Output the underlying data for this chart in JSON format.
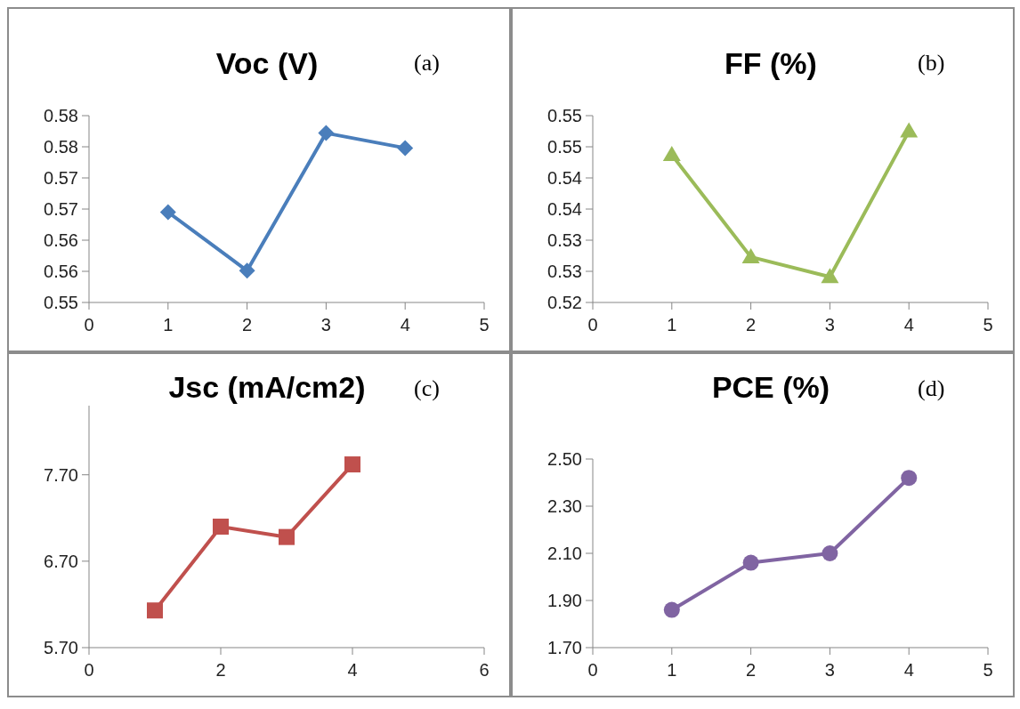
{
  "chart_data": [
    {
      "type": "line",
      "title": "Voc (V)",
      "annotations": [
        "(a)"
      ],
      "x": [
        1,
        2,
        3,
        4
      ],
      "marker": "diamond",
      "grid": false,
      "series": [
        {
          "color": "#4a7ebb",
          "values": [
            0.5645,
            0.5551,
            0.5772,
            0.5748
          ]
        }
      ],
      "xlim": [
        0,
        5
      ],
      "xticks": [
        0,
        1,
        2,
        3,
        4,
        5
      ],
      "ylim": [
        0.55,
        0.58
      ],
      "yticks": [
        0.55,
        {
          "value": 0.555,
          "label": "0.56"
        },
        0.56,
        {
          "value": 0.565,
          "label": "0.57"
        },
        0.57,
        {
          "value": 0.575,
          "label": "0.58"
        },
        0.58
      ]
    },
    {
      "type": "line",
      "title": "FF (%)",
      "annotations": [
        "(b)"
      ],
      "x": [
        1,
        2,
        3,
        4
      ],
      "marker": "triangle",
      "grid": false,
      "series": [
        {
          "color": "#9bbb59",
          "values": [
            0.5437,
            0.5273,
            0.5241,
            0.5475
          ]
        }
      ],
      "xlim": [
        0,
        5
      ],
      "xticks": [
        0,
        1,
        2,
        3,
        4,
        5
      ],
      "ylim": [
        0.52,
        0.55
      ],
      "yticks": [
        0.52,
        {
          "value": 0.525,
          "label": "0.53"
        },
        0.53,
        {
          "value": 0.535,
          "label": "0.54"
        },
        0.54,
        {
          "value": 0.545,
          "label": "0.55"
        },
        0.55
      ]
    },
    {
      "type": "line",
      "title": "Jsc (mA/cm2)",
      "annotations": [
        "(c)"
      ],
      "x": [
        1,
        2,
        3,
        4
      ],
      "marker": "square",
      "grid": false,
      "series": [
        {
          "color": "#c0504d",
          "values": [
            6.13,
            7.1,
            6.98,
            7.82
          ]
        }
      ],
      "xlim": [
        0,
        6
      ],
      "xticks": [
        0,
        2,
        4,
        6
      ],
      "ylim": [
        5.7,
        8.5
      ],
      "yticks": [
        {
          "value": 5.7,
          "label": "5.70"
        },
        {
          "value": 6.7,
          "label": "6.70"
        },
        {
          "value": 7.7,
          "label": "7.70"
        }
      ]
    },
    {
      "type": "line",
      "title": "PCE (%)",
      "annotations": [
        "(d)"
      ],
      "x": [
        1,
        2,
        3,
        4
      ],
      "marker": "circle",
      "grid": false,
      "series": [
        {
          "color": "#8064a2",
          "values": [
            1.86,
            2.06,
            2.1,
            2.42
          ]
        }
      ],
      "xlim": [
        0,
        5
      ],
      "xticks": [
        0,
        1,
        2,
        3,
        4,
        5
      ],
      "ylim": [
        1.7,
        2.5
      ],
      "yticks": [
        {
          "value": 1.7,
          "label": "1.70"
        },
        {
          "value": 1.9,
          "label": "1.90"
        },
        {
          "value": 2.1,
          "label": "2.10"
        },
        {
          "value": 2.3,
          "label": "2.30"
        },
        {
          "value": 2.5,
          "label": "2.50"
        }
      ]
    }
  ]
}
